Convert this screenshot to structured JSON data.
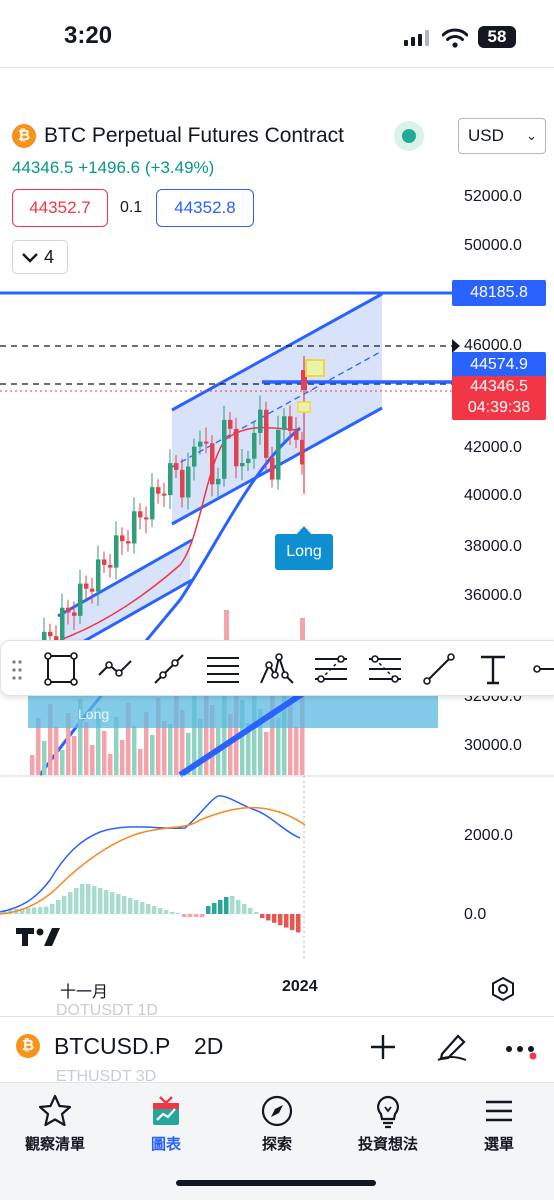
{
  "status_bar": {
    "time": "3:20",
    "battery": "58",
    "icons": [
      "cellular-signal-icon",
      "wifi-icon",
      "battery-icon"
    ]
  },
  "header": {
    "title": "BTC Perpetual Futures Contract",
    "currency": "USD",
    "last_price": "44346.5",
    "change": "+1496.6",
    "change_pct": "(+3.49%)",
    "bid": "44352.7",
    "spread": "0.1",
    "ask": "44352.8",
    "indicator_count": "4"
  },
  "price_axis": {
    "labels": [
      "52000.0",
      "50000.0",
      "46000.0",
      "42000.0",
      "40000.0",
      "38000.0",
      "36000.0",
      "32000.0",
      "30000.0"
    ],
    "tags": {
      "level_top": "48185.8",
      "level_blue": "44574.9",
      "last": "44346.5",
      "countdown": "04:39:38"
    }
  },
  "macd_axis": {
    "labels": [
      "2000.0",
      "0.0"
    ]
  },
  "annotations": {
    "long_label": "Long",
    "long_ghost": "Long"
  },
  "time_axis": {
    "labels": [
      "十一月",
      "2024"
    ]
  },
  "drawing_toolbar": {
    "tools": [
      "rectangle-tool-icon",
      "path-tool-icon",
      "trend-line-tool-icon",
      "horizontal-lines-tool-icon",
      "pattern-tool-icon",
      "fib-retracement-tool-icon",
      "fib-extension-tool-icon",
      "line-tool-icon",
      "text-tool-icon",
      "horizontal-ray-tool-icon"
    ]
  },
  "symbol_bar": {
    "symbol": "BTCUSD.P",
    "interval": "2D",
    "ghost_above": "DOTUSDT  1D",
    "ghost_below": "ETHUSDT  3D"
  },
  "bottom_nav": {
    "items": [
      {
        "label": "觀察清單",
        "icon": "star-icon"
      },
      {
        "label": "圖表",
        "icon": "chart-icon"
      },
      {
        "label": "探索",
        "icon": "compass-icon"
      },
      {
        "label": "投資想法",
        "icon": "lightbulb-icon"
      },
      {
        "label": "選單",
        "icon": "menu-icon"
      }
    ]
  },
  "colors": {
    "up": "#089981",
    "down": "#f23645",
    "accent": "#2962ff",
    "channel_fill": "#c7d5f7",
    "candle_up": "#2f9e7a",
    "candle_down": "#e0434f",
    "macd_line": "#2962ff",
    "signal_line": "#f5891f",
    "hist_up": "#26a69a",
    "hist_down": "#ef5350",
    "long_tag": "#0f8fcf"
  }
}
